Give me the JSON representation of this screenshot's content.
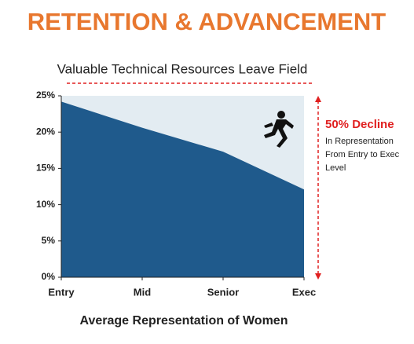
{
  "chart_data": {
    "type": "area",
    "title": "RETENTION & ADVANCEMENT",
    "subtitle": "Valuable Technical Resources Leave Field",
    "x_label": "Average Representation of Women",
    "categories": [
      "Entry",
      "Mid",
      "Senior",
      "Exec"
    ],
    "values": [
      24.2,
      20.6,
      17.3,
      12.1
    ],
    "color": "#1f5a8c",
    "background_color": "#e3ecf2",
    "ylim": [
      0,
      25
    ],
    "yticks": [
      {
        "value": 0,
        "label": "0%"
      },
      {
        "value": 5,
        "label": "5%"
      },
      {
        "value": 10,
        "label": "10%"
      },
      {
        "value": 15,
        "label": "15%"
      },
      {
        "value": 20,
        "label": "20%"
      },
      {
        "value": 25,
        "label": "25%"
      }
    ],
    "annotation": {
      "title": "50% Decline",
      "lines": [
        "In Representation",
        "From Entry to Exec",
        "Level"
      ]
    }
  }
}
